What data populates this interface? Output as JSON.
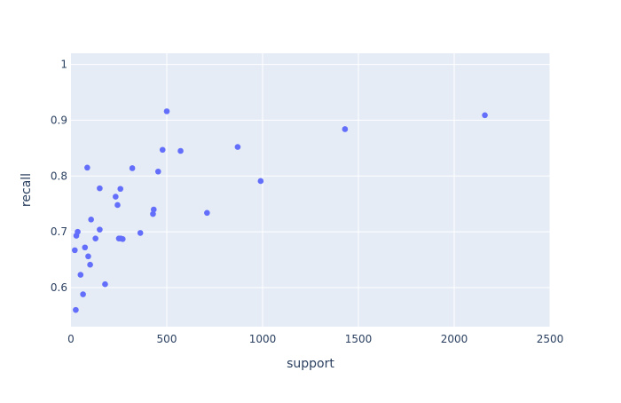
{
  "chart_data": {
    "type": "scatter",
    "title": "",
    "xlabel": "support",
    "ylabel": "recall",
    "xlim": [
      0,
      2500
    ],
    "ylim": [
      0.53,
      1.02
    ],
    "x_ticks": [
      0,
      500,
      1000,
      1500,
      2000,
      2500
    ],
    "y_ticks": [
      0.6,
      0.7,
      0.8,
      0.9,
      1
    ],
    "x_tick_labels": [
      "0",
      "500",
      "1000",
      "1500",
      "2000",
      "2500"
    ],
    "y_tick_labels": [
      "0.6",
      "0.7",
      "0.8",
      "0.9",
      "1"
    ],
    "grid": true,
    "colors": {
      "plot_bg": "#E5ECF6",
      "grid": "#FFFFFF",
      "marker": "#636EFA",
      "text": "#2A3F5F"
    },
    "series": [
      {
        "x": [
          25,
          20,
          28,
          35,
          50,
          63,
          73,
          85,
          90,
          100,
          105,
          128,
          150,
          150,
          178,
          233,
          243,
          250,
          258,
          260,
          270,
          320,
          362,
          428,
          432,
          455,
          478,
          500,
          572,
          710,
          870,
          990,
          1430,
          2160
        ],
        "y": [
          0.56,
          0.667,
          0.693,
          0.7,
          0.623,
          0.588,
          0.672,
          0.815,
          0.656,
          0.641,
          0.722,
          0.688,
          0.704,
          0.778,
          0.606,
          0.763,
          0.748,
          0.688,
          0.777,
          0.688,
          0.687,
          0.814,
          0.698,
          0.732,
          0.74,
          0.808,
          0.847,
          0.916,
          0.845,
          0.734,
          0.852,
          0.791,
          0.884,
          0.909
        ]
      }
    ]
  }
}
